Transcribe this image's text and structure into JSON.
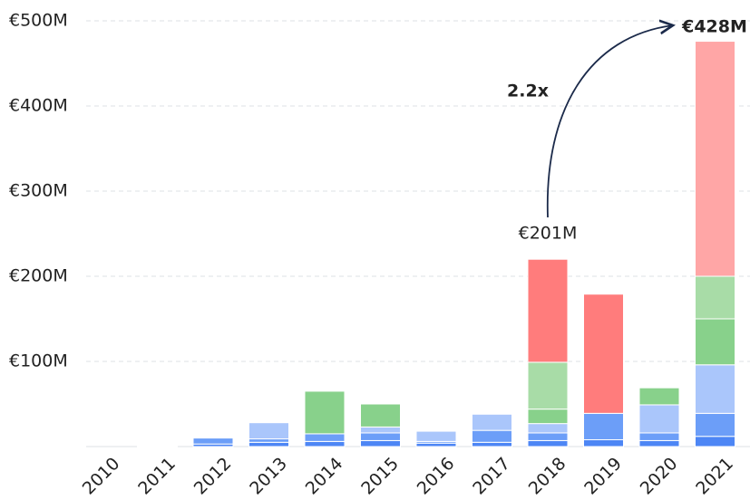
{
  "chart_data": {
    "type": "bar",
    "stacked": true,
    "categories": [
      "2010",
      "2011",
      "2012",
      "2013",
      "2014",
      "2015",
      "2016",
      "2017",
      "2018",
      "2019",
      "2020",
      "2021"
    ],
    "series": [
      {
        "color": "#4d86f5",
        "values": [
          0,
          0,
          3,
          5,
          6,
          7,
          4,
          5,
          7,
          8,
          7,
          12
        ]
      },
      {
        "color": "#6c9ef8",
        "values": [
          0,
          1,
          7,
          4,
          9,
          9,
          2,
          14,
          9,
          31,
          9,
          27
        ]
      },
      {
        "color": "#aac6fb",
        "values": [
          0,
          0,
          0,
          19,
          0,
          7,
          12,
          19,
          11,
          0,
          33,
          57
        ]
      },
      {
        "color": "#88d18b",
        "values": [
          0,
          0,
          0,
          0,
          50,
          27,
          0,
          0,
          17,
          0,
          20,
          54
        ]
      },
      {
        "color": "#a8dca7",
        "values": [
          0,
          0,
          0,
          0,
          0,
          0,
          0,
          0,
          55,
          0,
          0,
          50
        ]
      },
      {
        "color": "#ff7c7c",
        "values": [
          0,
          0,
          0,
          0,
          0,
          0,
          0,
          0,
          121,
          140,
          0,
          0
        ]
      },
      {
        "color": "#ffa6a6",
        "values": [
          0,
          0,
          0,
          0,
          0,
          0,
          0,
          0,
          0,
          0,
          0,
          276
        ]
      }
    ],
    "ylim": [
      0,
      500
    ],
    "yticks": [
      {
        "value": 100,
        "label": "€100M"
      },
      {
        "value": 200,
        "label": "€200M"
      },
      {
        "value": 300,
        "label": "€300M"
      },
      {
        "value": 400,
        "label": "€400M"
      },
      {
        "value": 500,
        "label": "€500M"
      }
    ],
    "grid": true,
    "annotations": [
      "€201M",
      "€428M",
      "2.2x"
    ]
  }
}
